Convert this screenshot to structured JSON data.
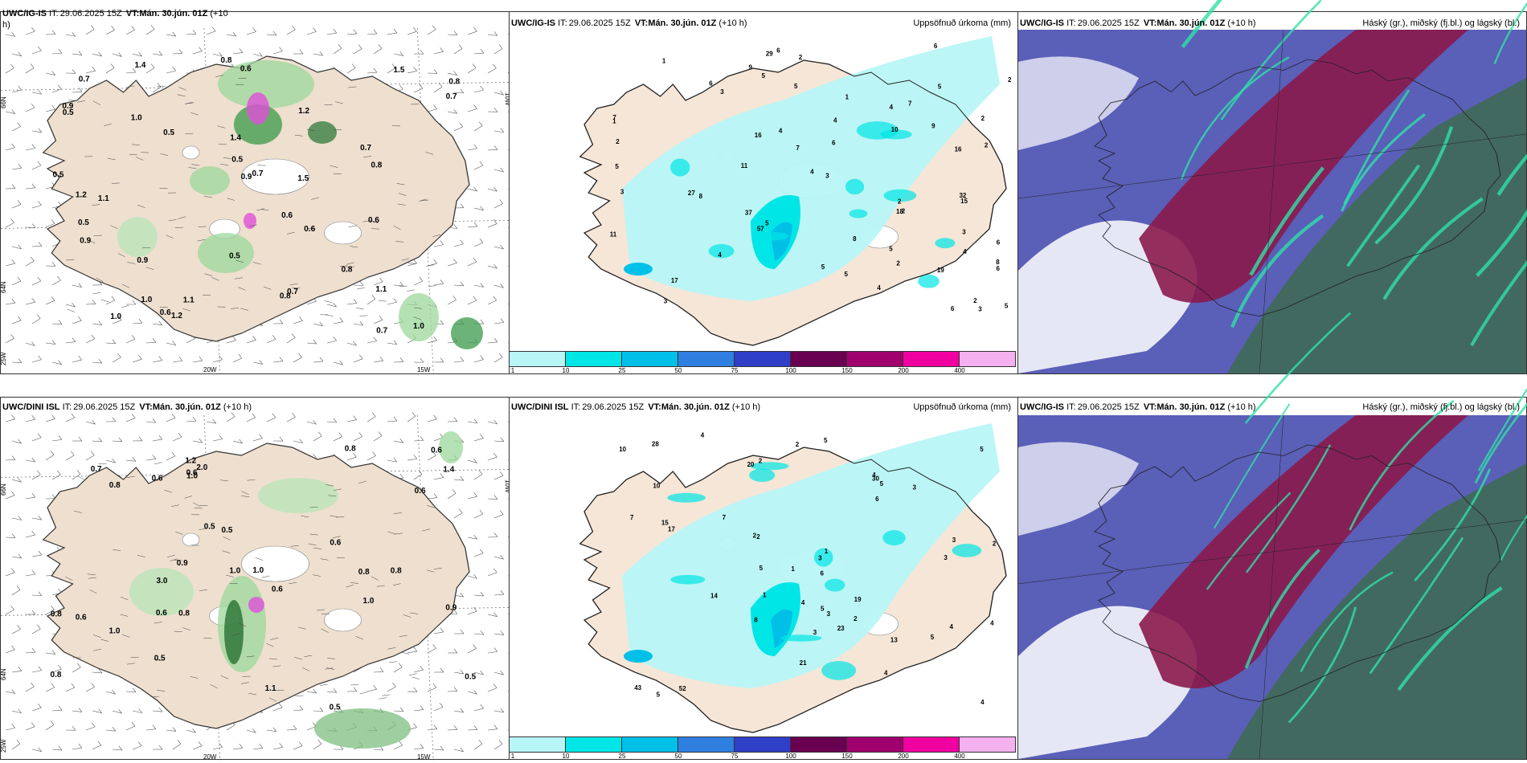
{
  "panels": {
    "p1": {
      "model": "UWC/IG-IS",
      "it_label": "IT:",
      "it": "29.06.2025 15Z",
      "vt_label": "VT:",
      "vt": "Mán. 30.jún. 01Z",
      "lead": "(+10",
      "lead_tail": "h)"
    },
    "p2": {
      "model": "UWC/IG-IS",
      "it_label": "IT:",
      "it": "29.06.2025 15Z",
      "vt_label": "VT:",
      "vt": "Mán. 30.jún. 01Z",
      "lead": "(+10 h)",
      "right": "Uppsöfnuð úrkoma (mm)"
    },
    "p3": {
      "model": "UWC/IG-IS",
      "it_label": "IT:",
      "it": "29.06.2025 15Z",
      "vt_label": "VT:",
      "vt": "Mán. 30.jún. 01Z",
      "lead": "(+10 h)",
      "right": "Háský (gr.), miðský (fj.bl.) og lágský (bl.)"
    },
    "p4": {
      "model": "UWC/DINI ISL",
      "it_label": "IT:",
      "it": "29.06.2025 15Z",
      "vt_label": "VT:",
      "vt": "Mán. 30.jún. 01Z",
      "lead": "(+10 h)"
    },
    "p5": {
      "model": "UWC/DINI ISL",
      "it_label": "IT:",
      "it": "29.06.2025 15Z",
      "vt_label": "VT:",
      "vt": "Mán. 30.jún. 01Z",
      "lead": "(+10 h)",
      "right": "Uppsöfnuð úrkoma (mm)"
    },
    "p6": {
      "model": "UWC/IG-IS",
      "it_label": "IT:",
      "it": "29.06.2025 15Z",
      "vt_label": "VT:",
      "vt": "Mán. 30.jún. 01Z",
      "lead": "(+10 h)",
      "right": "Háský (gr.), miðský (fj.bl.) og lágský (bl.)"
    }
  },
  "axis_labels": {
    "lat66": "66N",
    "lat64": "64N",
    "lon25": "25W",
    "lon20": "20W",
    "lon15": "15W",
    "lon10": "10W"
  },
  "colorbar": {
    "ticks": [
      "1",
      "10",
      "25",
      "50",
      "75",
      "100",
      "150",
      "200",
      "400"
    ],
    "colors": [
      "#b8f5f7",
      "#00e6e6",
      "#00c0e8",
      "#2f7fe0",
      "#2f3fc8",
      "#6a0050",
      "#a0006e",
      "#f000a0",
      "#f5b0f0"
    ]
  },
  "wind_precip_top": [
    "0.5",
    "0.6",
    "0.7",
    "0.8",
    "0.9",
    "1.0",
    "1.1",
    "1.2",
    "1.4",
    "1.5",
    "0.7",
    "0.6",
    "0.8",
    "0.5",
    "1.0",
    "0.9",
    "0.7",
    "1.2",
    "0.6",
    "0.5",
    "0.8",
    "1.1",
    "0.7",
    "0.5",
    "1.0",
    "0.9",
    "0.6",
    "1.4",
    "1.2",
    "0.8",
    "0.5",
    "0.7",
    "1.5",
    "1.0",
    "0.6",
    "0.9",
    "0.8",
    "0.7",
    "1.1",
    "0.5"
  ],
  "wind_precip_bottom": [
    "1.0",
    "0.8",
    "0.7",
    "0.9",
    "0.5",
    "0.6",
    "0.8",
    "0.5",
    "1.0",
    "0.6",
    "0.8",
    "0.6",
    "0.5",
    "0.9",
    "1.0",
    "0.8",
    "0.6",
    "1.2",
    "3.0",
    "0.6",
    "1.4",
    "2.0",
    "0.8",
    "1.0",
    "0.6",
    "0.5",
    "0.8",
    "1.1",
    "0.6",
    "0.8",
    "0.5",
    "0.6",
    "1.0"
  ],
  "accum_top": [
    "3",
    "2",
    "2",
    "3",
    "2",
    "3",
    "2",
    "5",
    "8",
    "5",
    "7",
    "6",
    "8",
    "3",
    "2",
    "5",
    "4",
    "4",
    "6",
    "3",
    "1",
    "6",
    "5",
    "6",
    "4",
    "11",
    "17",
    "16",
    "6",
    "5",
    "4",
    "10",
    "5",
    "29",
    "15",
    "9",
    "8",
    "19",
    "4",
    "18",
    "16",
    "7",
    "27",
    "37",
    "57",
    "11",
    "5",
    "32",
    "7",
    "2",
    "1",
    "3",
    "2",
    "6",
    "5",
    "4",
    "2",
    "1",
    "2",
    "9",
    "4",
    "5",
    "6"
  ],
  "accum_bottom": [
    "3",
    "1",
    "2",
    "4",
    "2",
    "3",
    "2",
    "1",
    "4",
    "4",
    "3",
    "3",
    "5",
    "7",
    "6",
    "10",
    "5",
    "4",
    "5",
    "15",
    "14",
    "5",
    "4",
    "13",
    "2",
    "7",
    "8",
    "5",
    "20",
    "23",
    "43",
    "52",
    "30",
    "10",
    "28",
    "2",
    "17",
    "21",
    "5",
    "3",
    "19",
    "6",
    "5",
    "4",
    "2",
    "1",
    "3",
    "4"
  ]
}
